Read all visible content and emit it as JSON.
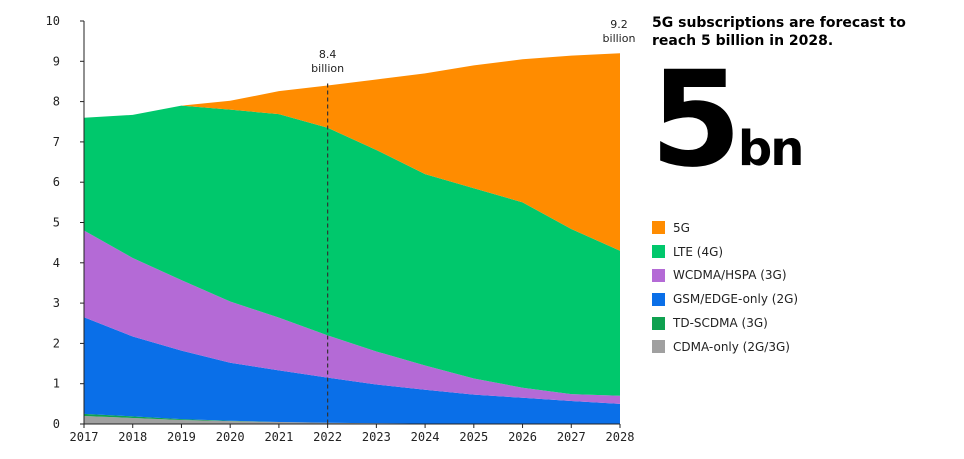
{
  "headline": "5G subscriptions are forecast to reach 5 billion in 2028.",
  "big_stat": {
    "number": "5",
    "unit": "bn"
  },
  "chart_data": {
    "type": "area",
    "stacked": true,
    "title": "",
    "xlabel": "",
    "ylabel": "",
    "x": [
      "2017",
      "2018",
      "2019",
      "2020",
      "2021",
      "2022",
      "2023",
      "2024",
      "2025",
      "2026",
      "2027",
      "2028"
    ],
    "ylim": [
      0,
      10
    ],
    "yticks": [
      "0",
      "1",
      "2",
      "3",
      "4",
      "5",
      "6",
      "7",
      "8",
      "9",
      "10"
    ],
    "grid": false,
    "legend_position": "right",
    "series": [
      {
        "name": "CDMA-only (2G/3G)",
        "color": "#a0a0a0",
        "values": [
          0.2,
          0.15,
          0.1,
          0.07,
          0.05,
          0.03,
          0.02,
          0.01,
          0.01,
          0.01,
          0.01,
          0.01
        ]
      },
      {
        "name": "TD-SCDMA (3G)",
        "color": "#0fa150",
        "values": [
          0.05,
          0.04,
          0.02,
          0.01,
          0.0,
          0.0,
          0.0,
          0.0,
          0.0,
          0.0,
          0.0,
          0.0
        ]
      },
      {
        "name": "GSM/EDGE-only (2G)",
        "color": "#0a6fe8",
        "values": [
          2.4,
          1.98,
          1.7,
          1.44,
          1.28,
          1.12,
          0.96,
          0.84,
          0.72,
          0.64,
          0.56,
          0.49
        ]
      },
      {
        "name": "WCDMA/HSPA (3G)",
        "color": "#b46ad6",
        "values": [
          2.15,
          1.95,
          1.75,
          1.52,
          1.31,
          1.05,
          0.82,
          0.6,
          0.4,
          0.25,
          0.17,
          0.2
        ]
      },
      {
        "name": "LTE (4G)",
        "color": "#00c86c",
        "values": [
          2.8,
          3.55,
          4.33,
          4.76,
          5.05,
          5.15,
          5.0,
          4.75,
          4.72,
          4.6,
          4.1,
          3.6
        ]
      },
      {
        "name": "5G",
        "color": "#ff8c00",
        "values": [
          0.0,
          0.0,
          0.0,
          0.22,
          0.57,
          1.05,
          1.75,
          2.5,
          3.05,
          3.55,
          4.3,
          4.9
        ]
      }
    ],
    "legend_order": [
      "5G",
      "LTE (4G)",
      "WCDMA/HSPA (3G)",
      "GSM/EDGE-only (2G)",
      "TD-SCDMA (3G)",
      "CDMA-only (2G/3G)"
    ],
    "annotations": [
      {
        "x": "2022",
        "value": "8.4",
        "text": "billion",
        "marker": "dashed-line"
      },
      {
        "x": "2028",
        "value": "9.2",
        "text": "billion"
      }
    ]
  }
}
